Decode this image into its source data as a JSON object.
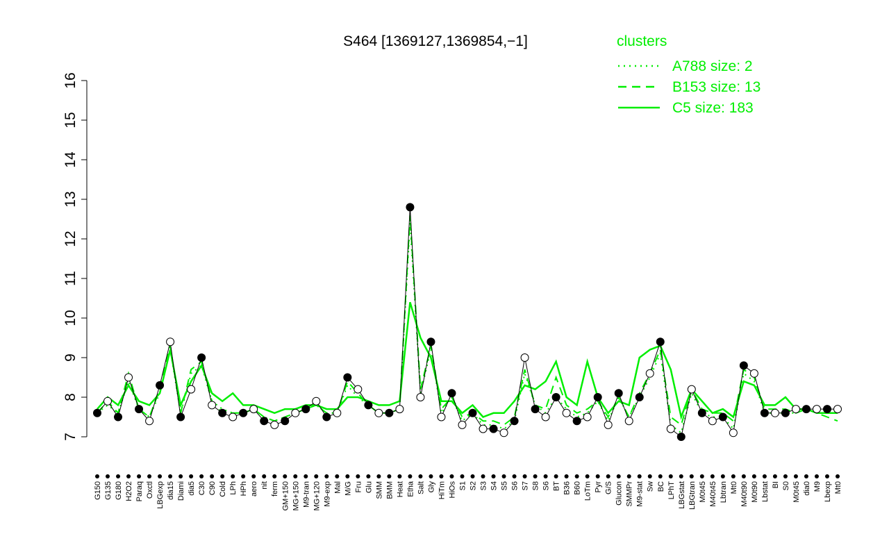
{
  "chart_data": {
    "type": "line",
    "title": "S464 [1369127,1369854,−1]",
    "legend_title": "clusters",
    "categories": [
      "G150",
      "G135",
      "G180",
      "H2O2",
      "Paraq",
      "Oxctl",
      "LBGexp",
      "dia15",
      "Diami",
      "dia5",
      "C30",
      "C90",
      "Cold",
      "LPh",
      "HPh",
      "aero",
      "nit",
      "ferm",
      "GM+150",
      "MG+150",
      "M9-tran",
      "MG+120",
      "M9-exp",
      "Mal",
      "M/G",
      "Fru",
      "Glu",
      "SMM",
      "BMM",
      "Heat",
      "Etha",
      "Salt",
      "Gly",
      "HiTm",
      "HiOs",
      "S1",
      "S2",
      "S3",
      "S4",
      "S5",
      "S6",
      "S7",
      "S8",
      "S6",
      "BT",
      "B36",
      "B60",
      "LoTm",
      "Pyr",
      "G/S",
      "Glucon",
      "SMMPr",
      "M9-stat",
      "Sw",
      "BC",
      "LPhT",
      "LBGstat",
      "LBGtran",
      "M0t45",
      "M40t45",
      "Lbtran",
      "Mt0",
      "M40t90",
      "M0t90",
      "Lbstat",
      "BI",
      "S0",
      "M0t45",
      "dia0",
      "M9",
      "Lbexp",
      "Mt0"
    ],
    "values": [
      7.6,
      7.9,
      7.5,
      8.5,
      7.7,
      7.4,
      8.3,
      9.4,
      7.5,
      8.2,
      9.0,
      7.8,
      7.6,
      7.5,
      7.6,
      7.7,
      7.4,
      7.3,
      7.4,
      7.6,
      7.7,
      7.9,
      7.5,
      7.6,
      8.5,
      8.2,
      7.8,
      7.6,
      7.6,
      7.7,
      12.8,
      8.0,
      9.4,
      7.5,
      8.1,
      7.3,
      7.6,
      7.2,
      7.2,
      7.1,
      7.4,
      9.0,
      7.7,
      7.5,
      8.0,
      7.6,
      7.4,
      7.5,
      8.0,
      7.3,
      8.1,
      7.4,
      8.0,
      8.6,
      9.4,
      7.2,
      7.0,
      8.2,
      7.6,
      7.4,
      7.5,
      7.1,
      8.8,
      8.6,
      7.6,
      7.6,
      7.6,
      7.7,
      7.7,
      7.7,
      7.7,
      7.7
    ],
    "point_colors": [
      "#000000",
      "#ffffff"
    ],
    "series": [
      {
        "name": "A788 size: 2",
        "color": "#00ee00",
        "dash": "dotted",
        "values": [
          7.6,
          7.8,
          7.6,
          8.4,
          7.7,
          7.5,
          8.1,
          9.2,
          7.6,
          8.6,
          8.8,
          7.9,
          7.7,
          7.6,
          7.6,
          7.7,
          7.5,
          7.4,
          7.5,
          7.6,
          7.7,
          7.8,
          7.6,
          7.6,
          8.3,
          8.0,
          7.8,
          7.6,
          7.6,
          7.7,
          12.4,
          8.1,
          9.2,
          7.6,
          8.0,
          7.4,
          7.6,
          7.3,
          7.3,
          7.2,
          7.4,
          8.6,
          7.8,
          7.6,
          8.0,
          7.7,
          7.5,
          7.6,
          7.9,
          7.4,
          8.0,
          7.5,
          8.0,
          8.5,
          9.1,
          7.3,
          7.1,
          8.1,
          7.6,
          7.5,
          7.5,
          7.2,
          8.6,
          8.4,
          7.6,
          7.6,
          7.6,
          7.6,
          7.7,
          7.6,
          7.6,
          7.6
        ]
      },
      {
        "name": "B153 size: 13",
        "color": "#00ee00",
        "dash": "dashed",
        "values": [
          7.6,
          7.9,
          7.6,
          8.6,
          7.7,
          7.5,
          8.2,
          9.3,
          7.6,
          8.7,
          8.9,
          7.9,
          7.6,
          7.6,
          7.6,
          7.7,
          7.5,
          7.4,
          7.5,
          7.6,
          7.7,
          7.8,
          7.6,
          7.6,
          8.4,
          8.1,
          7.8,
          7.6,
          7.6,
          7.7,
          12.6,
          8.2,
          9.3,
          7.7,
          8.0,
          7.5,
          7.6,
          7.4,
          7.4,
          7.3,
          7.5,
          8.7,
          7.8,
          7.7,
          8.5,
          7.8,
          7.6,
          7.7,
          7.9,
          7.5,
          8.0,
          7.5,
          8.1,
          8.6,
          9.2,
          7.5,
          7.3,
          8.2,
          7.7,
          7.6,
          7.6,
          7.4,
          8.7,
          8.5,
          7.7,
          7.7,
          7.7,
          7.6,
          7.7,
          7.6,
          7.5,
          7.4
        ]
      },
      {
        "name": "C5 size: 183",
        "color": "#00ee00",
        "dash": "solid",
        "values": [
          7.7,
          8.0,
          7.8,
          8.3,
          7.9,
          7.8,
          8.1,
          9.2,
          7.8,
          8.4,
          8.8,
          8.1,
          7.9,
          8.1,
          7.8,
          7.8,
          7.7,
          7.6,
          7.7,
          7.7,
          7.8,
          7.8,
          7.7,
          7.7,
          8.0,
          8.0,
          7.9,
          7.8,
          7.8,
          7.9,
          10.4,
          9.5,
          9.0,
          7.9,
          7.9,
          7.6,
          7.8,
          7.5,
          7.6,
          7.6,
          7.9,
          8.3,
          8.2,
          8.4,
          8.9,
          8.0,
          7.8,
          8.9,
          8.0,
          7.6,
          7.9,
          7.8,
          9.0,
          9.2,
          9.3,
          8.7,
          7.5,
          8.2,
          7.9,
          7.6,
          7.7,
          7.5,
          8.4,
          8.3,
          7.8,
          7.8,
          8.0,
          7.7,
          7.7,
          7.6,
          7.6,
          7.6
        ]
      }
    ],
    "ylim": [
      7,
      16
    ],
    "yticks": [
      7,
      8,
      9,
      10,
      11,
      12,
      13,
      14,
      15,
      16
    ]
  }
}
